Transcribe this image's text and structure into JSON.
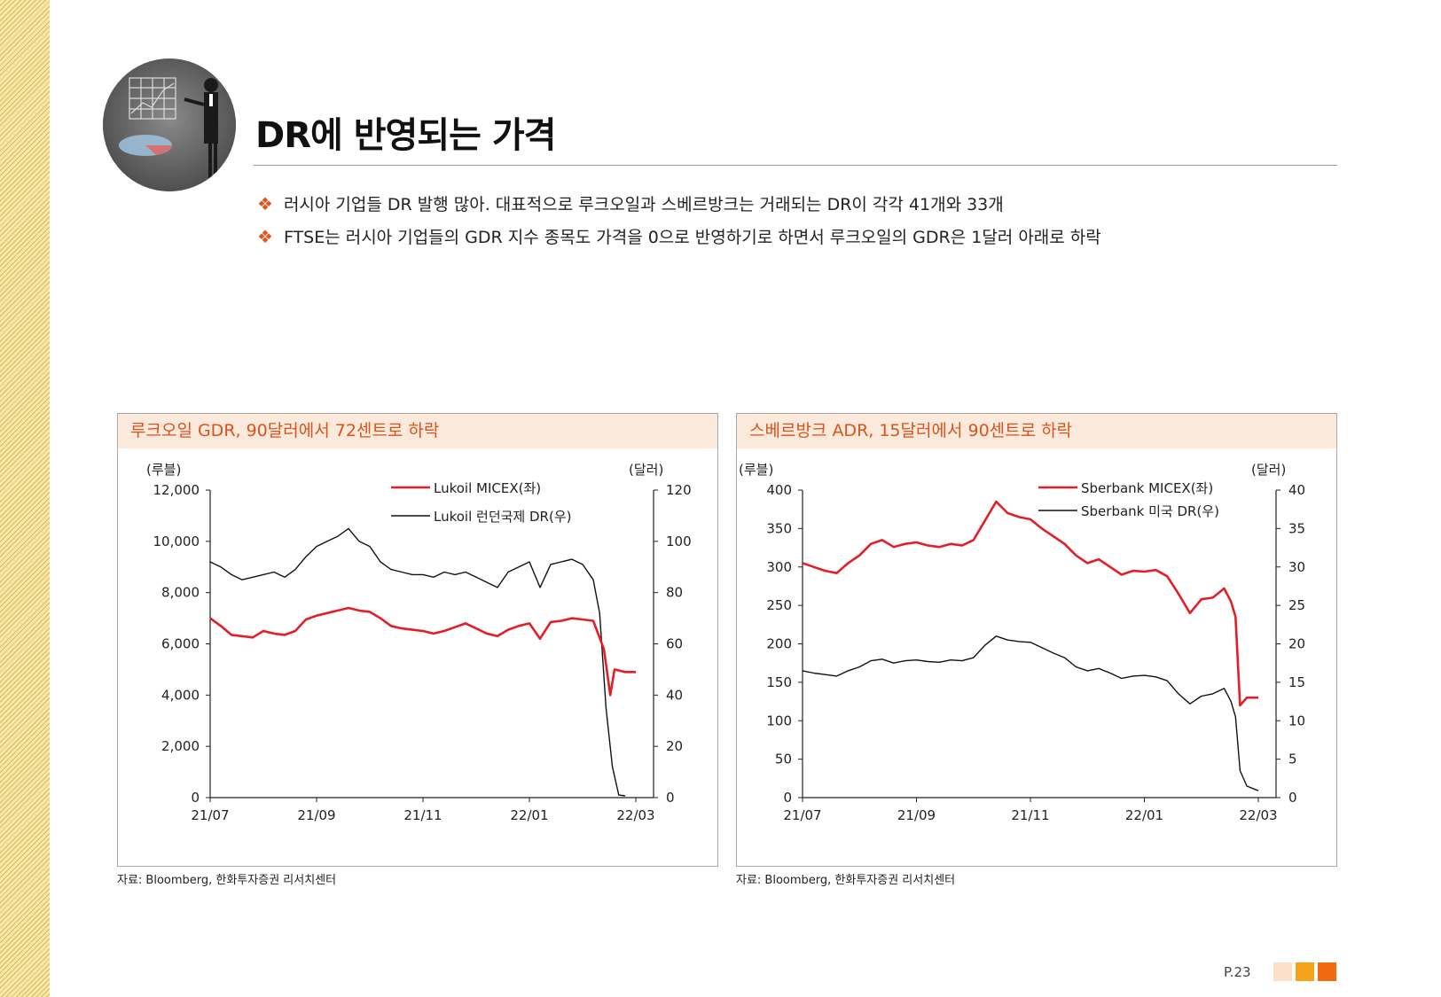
{
  "page": {
    "title": "DR에 반영되는 가격",
    "bullets": [
      "러시아 기업들 DR 발행 많아. 대표적으로 루크오일과 스베르방크는 거래되는 DR이 각각 41개와 33개",
      "FTSE는 러시아 기업들의 GDR 지수 종목도 가격을 0으로 반영하기로 하면서 루크오일의 GDR은 1달러 아래로 하락"
    ],
    "bullet_mark": "❖",
    "page_number": "P.23",
    "colors": {
      "accent": "#e0561f",
      "header_bg": "#fbeadb",
      "sq1": "#fde0c8",
      "sq2": "#f7a21b",
      "sq3": "#f26a10",
      "red_series": "#e41e26",
      "black_series": "#111111"
    }
  },
  "chart_data": [
    {
      "type": "line",
      "title": "루크오일 GDR, 90달러에서 72센트로 하락",
      "source": "자료: Bloomberg, 한화투자증권 리서치센터",
      "left_unit": "(루블)",
      "right_unit": "(달러)",
      "x_ticks": [
        "21/07",
        "21/09",
        "21/11",
        "22/01",
        "22/03"
      ],
      "y_left": {
        "min": 0,
        "max": 12000,
        "ticks": [
          "0",
          "2,000",
          "4,000",
          "6,000",
          "8,000",
          "10,000",
          "12,000"
        ]
      },
      "y_right": {
        "min": 0,
        "max": 120,
        "ticks": [
          "0",
          "20",
          "40",
          "60",
          "80",
          "100",
          "120"
        ]
      },
      "series": [
        {
          "name": "Lukoil MICEX(좌)",
          "axis": "left",
          "color": "#e41e26",
          "points": [
            [
              0.0,
              7000
            ],
            [
              0.05,
              6700
            ],
            [
              0.1,
              6350
            ],
            [
              0.15,
              6300
            ],
            [
              0.2,
              6250
            ],
            [
              0.25,
              6500
            ],
            [
              0.3,
              6400
            ],
            [
              0.35,
              6350
            ],
            [
              0.4,
              6500
            ],
            [
              0.45,
              6950
            ],
            [
              0.5,
              7100
            ],
            [
              0.55,
              7200
            ],
            [
              0.6,
              7300
            ],
            [
              0.65,
              7400
            ],
            [
              0.7,
              7300
            ],
            [
              0.75,
              7250
            ],
            [
              0.8,
              7000
            ],
            [
              0.85,
              6700
            ],
            [
              0.9,
              6600
            ],
            [
              0.95,
              6550
            ],
            [
              1.0,
              6500
            ],
            [
              1.05,
              6400
            ],
            [
              1.1,
              6500
            ],
            [
              1.15,
              6650
            ],
            [
              1.2,
              6800
            ],
            [
              1.25,
              6600
            ],
            [
              1.3,
              6400
            ],
            [
              1.35,
              6300
            ],
            [
              1.4,
              6550
            ],
            [
              1.45,
              6700
            ],
            [
              1.5,
              6800
            ],
            [
              1.55,
              6200
            ],
            [
              1.6,
              6850
            ],
            [
              1.65,
              6900
            ],
            [
              1.7,
              7000
            ],
            [
              1.75,
              6950
            ],
            [
              1.8,
              6900
            ],
            [
              1.85,
              5800
            ],
            [
              1.88,
              4000
            ],
            [
              1.9,
              5000
            ],
            [
              1.95,
              4900
            ],
            [
              2.0,
              4900
            ]
          ]
        },
        {
          "name": "Lukoil 런던국제 DR(우)",
          "axis": "right",
          "color": "#111111",
          "points": [
            [
              0.0,
              92
            ],
            [
              0.05,
              90
            ],
            [
              0.1,
              87
            ],
            [
              0.15,
              85
            ],
            [
              0.2,
              86
            ],
            [
              0.25,
              87
            ],
            [
              0.3,
              88
            ],
            [
              0.35,
              86
            ],
            [
              0.4,
              89
            ],
            [
              0.45,
              94
            ],
            [
              0.5,
              98
            ],
            [
              0.55,
              100
            ],
            [
              0.6,
              102
            ],
            [
              0.65,
              105
            ],
            [
              0.7,
              100
            ],
            [
              0.75,
              98
            ],
            [
              0.8,
              92
            ],
            [
              0.85,
              89
            ],
            [
              0.9,
              88
            ],
            [
              0.95,
              87
            ],
            [
              1.0,
              87
            ],
            [
              1.05,
              86
            ],
            [
              1.1,
              88
            ],
            [
              1.15,
              87
            ],
            [
              1.2,
              88
            ],
            [
              1.25,
              86
            ],
            [
              1.3,
              84
            ],
            [
              1.35,
              82
            ],
            [
              1.4,
              88
            ],
            [
              1.45,
              90
            ],
            [
              1.5,
              92
            ],
            [
              1.55,
              82
            ],
            [
              1.6,
              91
            ],
            [
              1.65,
              92
            ],
            [
              1.7,
              93
            ],
            [
              1.75,
              91
            ],
            [
              1.8,
              85
            ],
            [
              1.83,
              72
            ],
            [
              1.86,
              35
            ],
            [
              1.89,
              12
            ],
            [
              1.92,
              1
            ],
            [
              1.95,
              0.7
            ]
          ]
        }
      ]
    },
    {
      "type": "line",
      "title": "스베르방크 ADR, 15달러에서 90센트로 하락",
      "source": "자료: Bloomberg, 한화투자증권 리서치센터",
      "left_unit": "(루블)",
      "right_unit": "(달러)",
      "x_ticks": [
        "21/07",
        "21/09",
        "21/11",
        "22/01",
        "22/03"
      ],
      "y_left": {
        "min": 0,
        "max": 400,
        "ticks": [
          "0",
          "50",
          "100",
          "150",
          "200",
          "250",
          "300",
          "350",
          "400"
        ]
      },
      "y_right": {
        "min": 0,
        "max": 40,
        "ticks": [
          "0",
          "5",
          "10",
          "15",
          "20",
          "25",
          "30",
          "35",
          "40"
        ]
      },
      "series": [
        {
          "name": "Sberbank MICEX(좌)",
          "axis": "left",
          "color": "#e41e26",
          "points": [
            [
              0.0,
              305
            ],
            [
              0.05,
              300
            ],
            [
              0.1,
              295
            ],
            [
              0.15,
              292
            ],
            [
              0.2,
              305
            ],
            [
              0.25,
              315
            ],
            [
              0.3,
              330
            ],
            [
              0.35,
              335
            ],
            [
              0.4,
              326
            ],
            [
              0.45,
              330
            ],
            [
              0.5,
              332
            ],
            [
              0.55,
              328
            ],
            [
              0.6,
              326
            ],
            [
              0.65,
              330
            ],
            [
              0.7,
              328
            ],
            [
              0.75,
              335
            ],
            [
              0.8,
              360
            ],
            [
              0.85,
              385
            ],
            [
              0.9,
              370
            ],
            [
              0.95,
              365
            ],
            [
              1.0,
              362
            ],
            [
              1.05,
              350
            ],
            [
              1.1,
              340
            ],
            [
              1.15,
              330
            ],
            [
              1.2,
              315
            ],
            [
              1.25,
              305
            ],
            [
              1.3,
              310
            ],
            [
              1.35,
              300
            ],
            [
              1.4,
              290
            ],
            [
              1.45,
              295
            ],
            [
              1.5,
              294
            ],
            [
              1.55,
              296
            ],
            [
              1.6,
              288
            ],
            [
              1.65,
              265
            ],
            [
              1.7,
              240
            ],
            [
              1.75,
              258
            ],
            [
              1.8,
              260
            ],
            [
              1.85,
              272
            ],
            [
              1.88,
              255
            ],
            [
              1.9,
              235
            ],
            [
              1.92,
              120
            ],
            [
              1.95,
              130
            ],
            [
              2.0,
              130
            ]
          ]
        },
        {
          "name": "Sberbank 미국 DR(우)",
          "axis": "right",
          "color": "#111111",
          "points": [
            [
              0.0,
              16.5
            ],
            [
              0.05,
              16.2
            ],
            [
              0.1,
              16.0
            ],
            [
              0.15,
              15.8
            ],
            [
              0.2,
              16.5
            ],
            [
              0.25,
              17.0
            ],
            [
              0.3,
              17.8
            ],
            [
              0.35,
              18.0
            ],
            [
              0.4,
              17.5
            ],
            [
              0.45,
              17.8
            ],
            [
              0.5,
              17.9
            ],
            [
              0.55,
              17.7
            ],
            [
              0.6,
              17.6
            ],
            [
              0.65,
              17.9
            ],
            [
              0.7,
              17.8
            ],
            [
              0.75,
              18.2
            ],
            [
              0.8,
              19.8
            ],
            [
              0.85,
              21.0
            ],
            [
              0.9,
              20.5
            ],
            [
              0.95,
              20.3
            ],
            [
              1.0,
              20.2
            ],
            [
              1.05,
              19.5
            ],
            [
              1.1,
              18.8
            ],
            [
              1.15,
              18.2
            ],
            [
              1.2,
              17.0
            ],
            [
              1.25,
              16.5
            ],
            [
              1.3,
              16.8
            ],
            [
              1.35,
              16.2
            ],
            [
              1.4,
              15.5
            ],
            [
              1.45,
              15.8
            ],
            [
              1.5,
              15.9
            ],
            [
              1.55,
              15.7
            ],
            [
              1.6,
              15.2
            ],
            [
              1.65,
              13.5
            ],
            [
              1.7,
              12.2
            ],
            [
              1.75,
              13.2
            ],
            [
              1.8,
              13.5
            ],
            [
              1.85,
              14.2
            ],
            [
              1.88,
              12.5
            ],
            [
              1.9,
              10.5
            ],
            [
              1.92,
              3.5
            ],
            [
              1.95,
              1.5
            ],
            [
              2.0,
              0.9
            ]
          ]
        }
      ]
    }
  ]
}
